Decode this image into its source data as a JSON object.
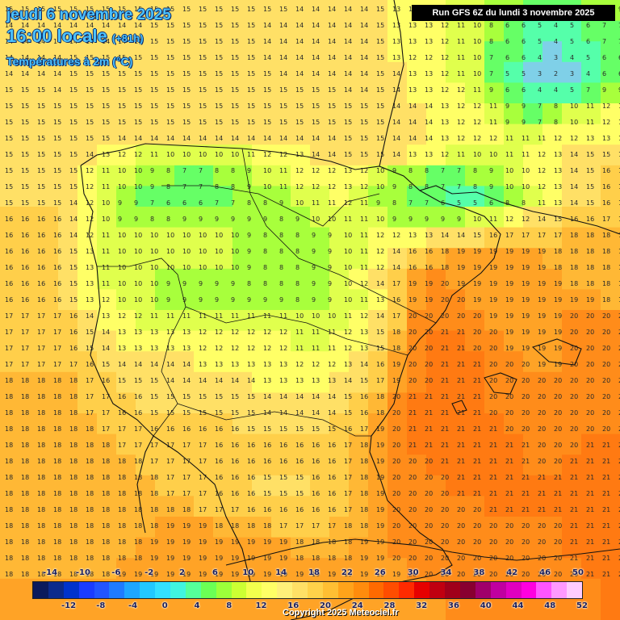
{
  "header": {
    "date": "jeudi 6 novembre 2025",
    "time": "16:00 locale",
    "lead": "(+81h)",
    "parameter": "Températures à 2m (°C)"
  },
  "run_label": "Run GFS 6Z du lundi 3 novembre 2025",
  "copyright": "Copyright 2025 Meteociel.fr",
  "legend": {
    "ticks_top": [
      "-14",
      "-10",
      "-6",
      "-2",
      "2",
      "6",
      "10",
      "14",
      "18",
      "22",
      "26",
      "30",
      "34",
      "38",
      "42",
      "46",
      "50"
    ],
    "ticks_bottom": [
      "-12",
      "-8",
      "-4",
      "0",
      "4",
      "8",
      "12",
      "16",
      "20",
      "24",
      "28",
      "32",
      "36",
      "40",
      "44",
      "48",
      "52"
    ],
    "colors": [
      "#0a1a5c",
      "#0b2a8c",
      "#0033cc",
      "#1a3cff",
      "#2255ff",
      "#1f7bff",
      "#1ea6ff",
      "#22c8ff",
      "#33e0ff",
      "#40f5e0",
      "#55ff9a",
      "#6bff55",
      "#9cff3a",
      "#ccff33",
      "#f2ff4d",
      "#ffff66",
      "#fff07a",
      "#ffe066",
      "#ffd24a",
      "#ffbf33",
      "#ffa31a",
      "#ff8c0d",
      "#ff6a00",
      "#ff4d00",
      "#ff2a00",
      "#e60000",
      "#c00010",
      "#a0001a",
      "#880030",
      "#a0006a",
      "#c000a0",
      "#e000c0",
      "#ff00e0",
      "#ff55ff",
      "#ff99ff",
      "#ffccff"
    ]
  },
  "map": {
    "rows": [
      "15 15 15 15 15 15 15 15 15 15 15 15 15 15 15 14 14 14 14 15 13 13 13 10 10 9 8 6 6 7 8 9",
      "14 14 14 14 14 14 14 15 15 15 15 15 15 14 14 14 14 14 14 15 13 13 12 11 10 8 6 5 4 5 6 7",
      "14 14 14 15 15 15 15 15 15 15 15 15 15 14 14 14 14 14 14 15 13 12 12 11 10 7 6 4 3 4 5 6",
      "14 14 14 15 15 15 15 15 15 15 15 15 15 15 14 14 14 14 14 15 14 13 12 11 10 7 5 3 2 3 4 6",
      "15 15 14 15 15 15 15 15 15 15 15 15 15 15 15 15 15 14 14 15 14 13 12 12 11 9 6 4 4 5 7 9",
      "15 15 15 15 15 15 15 15 15 15 15 15 15 15 15 15 15 15 15 15 14 14 13 12 12 11 9 7 8 10 11 12",
      "15 15 15 15 15 15 14 14 14 14 14 14 14 14 14 14 14 15 15 15 14 14 13 12 12 12 11 11 12 12 13 13",
      "15 15 15 15 14 13 12 11 10 10 10 10 11 12 12 13 14 15 15 15 14 13 12 11 10 10 11 12 13 14 15 15",
      "15 15 15 15 12 11 10 9 8 7 7 8 9 10 11 12 12 13 12 10 9 8 7 7 8 9 10 12 13 14 15 16",
      "15 15 15 14 12 10 9 7 6 6 6 7 8 8 9 10 11 12 11 9 8 7 6 5 5 6 8 11 13 14 15 16",
      "16 16 16 14 12 10 9 8 8 9 9 9 9 9 8 9 10 11 11 10 9 9 9 9 10 11 12 14 15 16 16 17",
      "16 16 16 14 12 11 10 10 10 10 10 10 9 8 8 8 9 10 11 12 12 13 14 14 15 16 17 17 17 18 18 18",
      "16 16 16 15 13 11 10 10 10 10 10 10 9 8 8 8 9 10 11 12 14 16 18 19 19 19 19 19 18 18 18 18",
      "16 16 16 15 13 11 10 10 9 9 9 9 8 8 8 8 9 10 12 14 17 19 20 19 19 19 19 19 19 18 18 18",
      "16 16 16 15 13 12 10 10 9 9 9 9 9 9 9 8 9 10 11 13 16 19 20 20 19 19 19 19 19 19 19 18",
      "17 17 17 16 14 13 12 11 11 11 11 11 11 11 11 10 10 11 12 14 17 20 20 20 20 19 19 19 19 20 20 20",
      "17 17 17 16 15 14 13 13 13 13 12 12 12 12 12 11 11 12 13 15 18 20 21 21 20 20 19 19 19 20 20 20",
      "17 17 17 17 16 15 14 14 14 14 13 13 13 13 13 12 12 13 14 16 19 20 21 21 21 20 20 19 19 20 20 20",
      "18 18 18 18 17 16 15 15 14 14 14 14 14 13 13 13 13 14 15 17 19 20 21 21 21 20 20 20 20 20 20 20",
      "18 18 18 18 17 17 16 15 15 15 15 15 15 14 14 14 14 15 16 18 20 21 21 21 21 20 20 20 20 20 20 20",
      "18 18 18 18 18 17 17 16 16 16 16 16 15 15 15 15 15 16 17 19 20 21 21 21 21 21 20 20 20 20 20 20",
      "18 18 18 18 18 18 17 17 17 17 17 16 16 16 16 16 16 17 18 19 20 21 21 21 21 21 21 20 20 20 21 21",
      "18 18 18 18 18 18 18 17 17 17 17 16 16 16 16 16 16 17 18 19 20 20 21 21 21 21 21 20 20 21 21 21",
      "18 18 18 18 18 18 18 18 17 17 17 16 16 15 15 15 16 17 18 19 20 20 20 21 21 21 21 21 21 21 21 21",
      "18 18 18 18 18 18 18 18 18 18 17 17 16 16 16 16 16 17 18 19 20 20 20 20 20 21 21 21 21 21 21 21",
      "18 18 18 18 18 18 18 18 19 19 19 18 18 18 17 17 17 18 18 19 20 20 20 20 20 20 20 20 20 21 21 21",
      "18 18 18 18 18 18 18 19 19 19 19 19 19 19 19 18 18 18 19 19 20 20 20 20 20 20 20 20 20 21 21 21",
      "18 18 18 18 18 18 19 19 19 19 19 19 19 19 19 19 19 19 19 19 19 20 20 20 20 20 20 20 20 20 21 21",
      "19 19 19 19 19 19 19 19 19 19 19 19 19 19 19 19 19 19 19 19 19 19 20 20 20 20 20 20 20 20 20 21",
      "19 19 19 19 19 19 19 19 19 19 19 19 19 19 19 19 19 19 19 19 19 19 19 20 20 20 20 20 20 20 20 21"
    ]
  }
}
